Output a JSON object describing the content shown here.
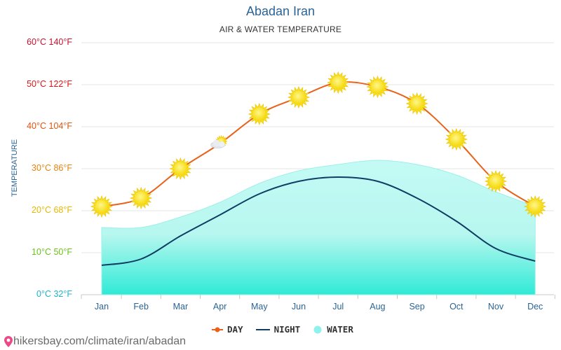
{
  "chart_data": {
    "type": "line",
    "title": "Abadan Iran",
    "subtitle": "AIR & WATER TEMPERATURE",
    "ylabel": "TEMPERATURE",
    "categories": [
      "Jan",
      "Feb",
      "Mar",
      "Apr",
      "May",
      "Jun",
      "Jul",
      "Aug",
      "Sep",
      "Oct",
      "Nov",
      "Dec"
    ],
    "ylim": [
      0,
      60
    ],
    "yticks": [
      {
        "value": 0,
        "label": "0°C 32°F",
        "color": "#1fb4c8"
      },
      {
        "value": 10,
        "label": "10°C 50°F",
        "color": "#6cc21b"
      },
      {
        "value": 20,
        "label": "20°C 68°F",
        "color": "#e5b800"
      },
      {
        "value": 30,
        "label": "30°C 86°F",
        "color": "#e8830c"
      },
      {
        "value": 40,
        "label": "40°C 104°F",
        "color": "#e0540e"
      },
      {
        "value": 50,
        "label": "50°C 122°F",
        "color": "#d9161c"
      },
      {
        "value": 60,
        "label": "60°C 140°F",
        "color": "#c8102e"
      }
    ],
    "series": [
      {
        "name": "DAY",
        "color": "#e8621a",
        "values": [
          21,
          23,
          30,
          36,
          43,
          47,
          50.5,
          49.5,
          45.5,
          37,
          27,
          21
        ]
      },
      {
        "name": "NIGHT",
        "color": "#0f3d63",
        "values": [
          7,
          8.5,
          14,
          19,
          24,
          27,
          28,
          27,
          23,
          17.5,
          11,
          8
        ]
      },
      {
        "name": "WATER",
        "color": "#8ef2ea",
        "values": [
          16,
          16,
          18.5,
          22,
          26.5,
          29.5,
          31,
          32,
          31,
          28.5,
          24.5,
          21
        ]
      }
    ],
    "day_icons": [
      "sun",
      "sun",
      "sun",
      "partly-cloudy",
      "sun",
      "sun",
      "sun",
      "sun",
      "sun",
      "sun",
      "sun",
      "sun"
    ]
  },
  "legend": {
    "day": "DAY",
    "night": "NIGHT",
    "water": "WATER"
  },
  "source": "hikersbay.com/climate/iran/abadan"
}
